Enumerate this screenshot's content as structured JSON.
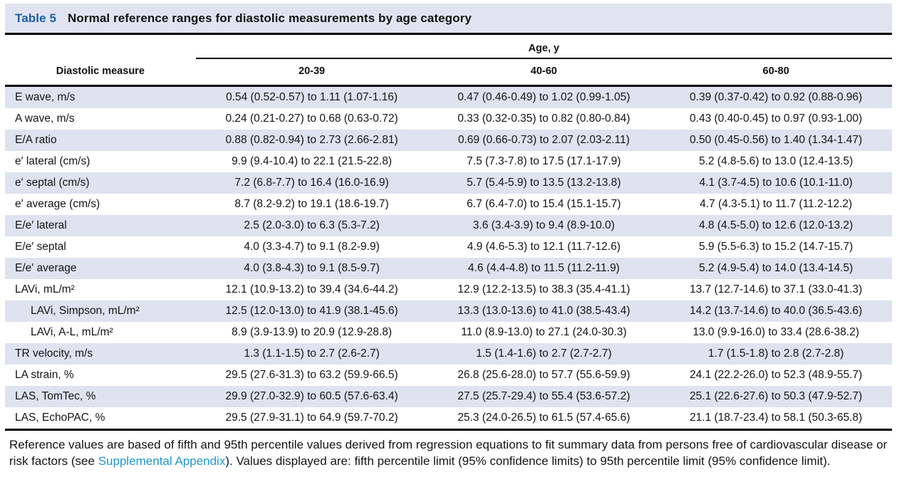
{
  "title": {
    "label": "Table 5",
    "text": "Normal reference ranges for diastolic measurements by age category"
  },
  "header": {
    "measure_col": "Diastolic measure",
    "age_group_label": "Age, y",
    "age_columns": [
      "20-39",
      "40-60",
      "60-80"
    ]
  },
  "rows": [
    {
      "measure": "E wave, m/s",
      "values": [
        "0.54 (0.52-0.57) to 1.11 (1.07-1.16)",
        "0.47 (0.46-0.49) to 1.02 (0.99-1.05)",
        "0.39 (0.37-0.42) to 0.92 (0.88-0.96)"
      ]
    },
    {
      "measure": "A wave, m/s",
      "values": [
        "0.24 (0.21-0.27) to 0.68 (0.63-0.72)",
        "0.33 (0.32-0.35) to 0.82 (0.80-0.84)",
        "0.43 (0.40-0.45) to 0.97 (0.93-1.00)"
      ]
    },
    {
      "measure": "E/A ratio",
      "values": [
        "0.88 (0.82-0.94) to 2.73 (2.66-2.81)",
        "0.69 (0.66-0.73) to 2.07 (2.03-2.11)",
        "0.50 (0.45-0.56) to 1.40 (1.34-1.47)"
      ]
    },
    {
      "measure": "e′ lateral (cm/s)",
      "values": [
        "9.9 (9.4-10.4) to 22.1 (21.5-22.8)",
        "7.5 (7.3-7.8) to 17.5 (17.1-17.9)",
        "5.2 (4.8-5.6) to 13.0 (12.4-13.5)"
      ]
    },
    {
      "measure": "e′ septal (cm/s)",
      "values": [
        "7.2 (6.8-7.7) to 16.4 (16.0-16.9)",
        "5.7 (5.4-5.9) to 13.5 (13.2-13.8)",
        "4.1 (3.7-4.5) to 10.6 (10.1-11.0)"
      ]
    },
    {
      "measure": "e′ average (cm/s)",
      "values": [
        "8.7 (8.2-9.2) to 19.1 (18.6-19.7)",
        "6.7 (6.4-7.0) to 15.4 (15.1-15.7)",
        "4.7 (4.3-5.1) to 11.7 (11.2-12.2)"
      ]
    },
    {
      "measure": "E/e′ lateral",
      "values": [
        "2.5 (2.0-3.0) to 6.3 (5.3-7.2)",
        "3.6 (3.4-3.9) to 9.4 (8.9-10.0)",
        "4.8 (4.5-5.0) to 12.6 (12.0-13.2)"
      ]
    },
    {
      "measure": "E/e′ septal",
      "values": [
        "4.0 (3.3-4.7) to 9.1 (8.2-9.9)",
        "4.9 (4.6-5.3) to 12.1 (11.7-12.6)",
        "5.9 (5.5-6.3) to 15.2 (14.7-15.7)"
      ]
    },
    {
      "measure": "E/e′ average",
      "values": [
        "4.0 (3.8-4.3) to 9.1 (8.5-9.7)",
        "4.6 (4.4-4.8) to 11.5 (11.2-11.9)",
        "5.2 (4.9-5.4) to 14.0 (13.4-14.5)"
      ]
    },
    {
      "measure": "LAVi, mL/m²",
      "values": [
        "12.1 (10.9-13.2) to 39.4 (34.6-44.2)",
        "12.9 (12.2-13.5) to 38.3 (35.4-41.1)",
        "13.7 (12.7-14.6) to 37.1 (33.0-41.3)"
      ]
    },
    {
      "measure": "LAVi, Simpson, mL/m²",
      "values": [
        "12.5 (12.0-13.0) to 41.9 (38.1-45.6)",
        "13.3 (13.0-13.6) to 41.0 (38.5-43.4)",
        "14.2 (13.7-14.6) to 40.0 (36.5-43.6)"
      ]
    },
    {
      "measure": "LAVi, A-L, mL/m²",
      "values": [
        "8.9 (3.9-13.9) to 20.9 (12.9-28.8)",
        "11.0 (8.9-13.0) to 27.1 (24.0-30.3)",
        "13.0 (9.9-16.0) to 33.4 (28.6-38.2)"
      ]
    },
    {
      "measure": "TR velocity, m/s",
      "values": [
        "1.3 (1.1-1.5) to 2.7 (2.6-2.7)",
        "1.5 (1.4-1.6) to 2.7 (2.7-2.7)",
        "1.7 (1.5-1.8) to 2.8 (2.7-2.8)"
      ]
    },
    {
      "measure": "LA strain, %",
      "values": [
        "29.5 (27.6-31.3) to 63.2 (59.9-66.5)",
        "26.8 (25.6-28.0) to 57.7 (55.6-59.9)",
        "24.1 (22.2-26.0) to 52.3 (48.9-55.7)"
      ]
    },
    {
      "measure": "LAS, TomTec, %",
      "values": [
        "29.9 (27.0-32.9) to 60.5 (57.6-63.4)",
        "27.5 (25.7-29.4) to 55.4 (53.6-57.2)",
        "25.1 (22.6-27.6) to 50.3 (47.9-52.7)"
      ]
    },
    {
      "measure": "LAS, EchoPAC, %",
      "values": [
        "29.5 (27.9-31.1) to 64.9 (59.7-70.2)",
        "25.3 (24.0-26.5) to 61.5 (57.4-65.6)",
        "21.1 (18.7-23.4) to 58.1 (50.3-65.8)"
      ]
    }
  ],
  "footnote": {
    "before_link": "Reference values are based of fifth and 95th percentile values derived from regression equations to fit summary data from persons free of cardio­vascular disease or risk factors (see ",
    "link": "Supplemental Appendix",
    "after_link": "). Values displayed are: fifth percentile limit (95% confidence limits) to 95th percentile limit (95% confidence limit)."
  },
  "colors": {
    "title_accent": "#1c60a8",
    "stripe": "#dfe2ef",
    "title_bar_bg": "#e1e4f0",
    "link": "#1f97cd",
    "text": "#141414"
  }
}
